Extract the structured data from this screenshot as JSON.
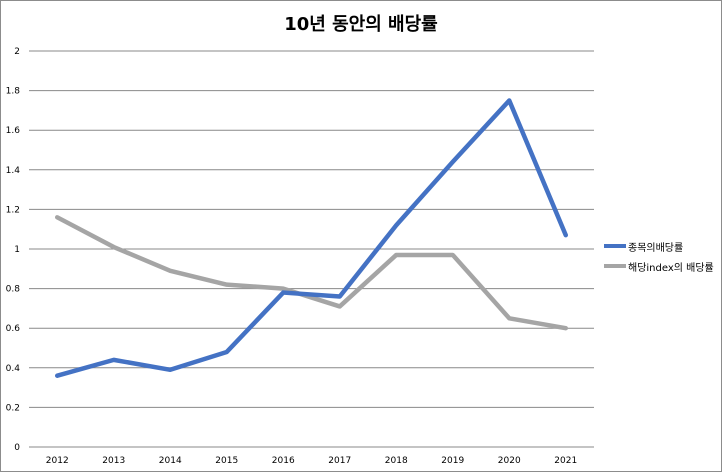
{
  "chart_data": {
    "type": "line",
    "title": "10년 동안의 배당률",
    "xlabel": "",
    "ylabel": "",
    "categories": [
      "2012",
      "2013",
      "2014",
      "2015",
      "2016",
      "2017",
      "2018",
      "2019",
      "2020",
      "2021"
    ],
    "ylim": [
      0,
      2
    ],
    "yticks": [
      0,
      0.2,
      0.4,
      0.6,
      0.8,
      1,
      1.2,
      1.4,
      1.6,
      1.8,
      2
    ],
    "ytick_labels": [
      "0",
      "0.2",
      "0.4",
      "0.6",
      "0.8",
      "1",
      "1.2",
      "1.4",
      "1.6",
      "1.8",
      "2"
    ],
    "grid": true,
    "legend_position": "right",
    "series": [
      {
        "name": "종목의배당률",
        "color": "#4472C4",
        "values": [
          0.36,
          0.44,
          0.39,
          0.48,
          0.78,
          0.76,
          1.12,
          1.44,
          1.75,
          1.07
        ]
      },
      {
        "name": "해당index의 배당률",
        "color": "#A5A5A5",
        "values": [
          1.16,
          1.01,
          0.89,
          0.82,
          0.8,
          0.71,
          0.97,
          0.97,
          0.65,
          0.6
        ]
      }
    ]
  }
}
